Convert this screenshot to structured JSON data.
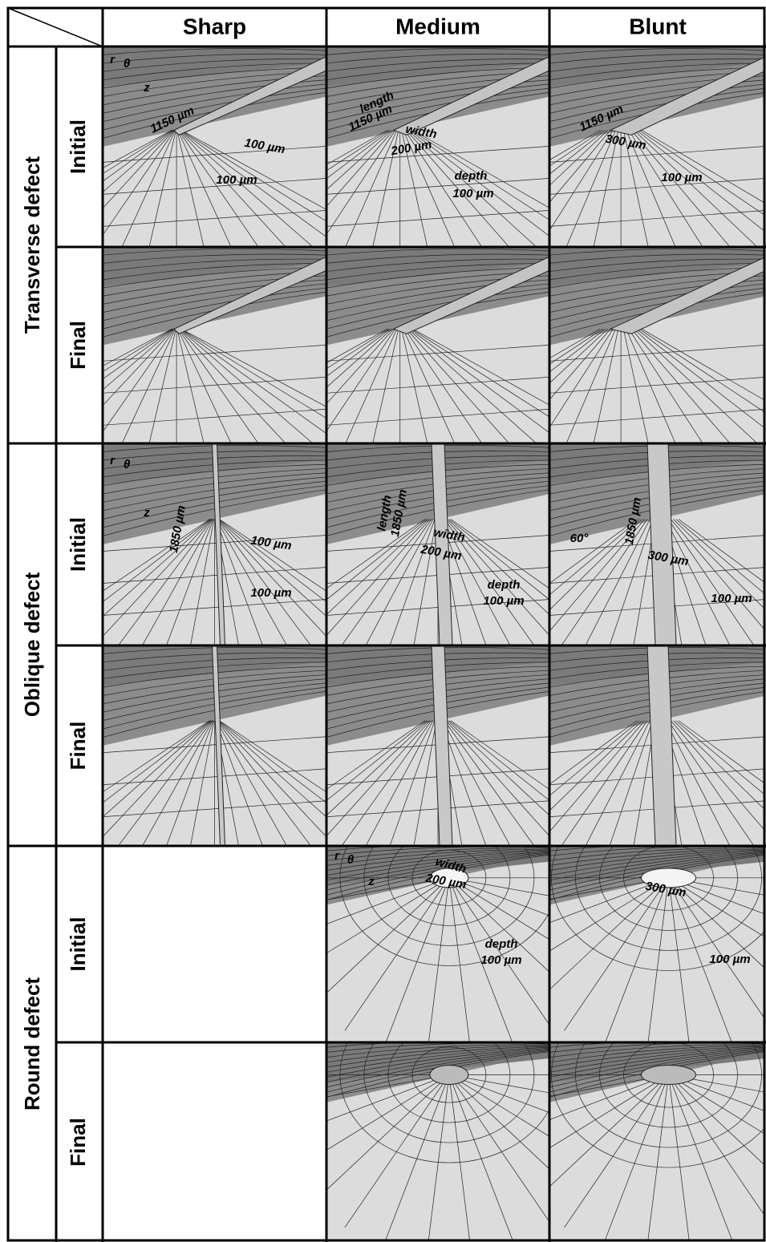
{
  "header": {
    "columns": [
      "Sharp",
      "Medium",
      "Blunt"
    ]
  },
  "row_groups": [
    {
      "label": "Transverse defect",
      "rows": [
        {
          "label": "Initial",
          "cells": [
            [
              "r",
              "θ",
              "z",
              "1150 µm",
              "100 µm",
              "100 µm"
            ],
            [
              "length",
              "1150 µm",
              "width",
              "200 µm",
              "depth",
              "100 µm"
            ],
            [
              "1150 µm",
              "300 µm",
              "100 µm"
            ]
          ]
        },
        {
          "label": "Final"
        }
      ]
    },
    {
      "label": "Oblique defect",
      "rows": [
        {
          "label": "Initial",
          "cells": [
            [
              "r",
              "θ",
              "z",
              "1850 µm",
              "100 µm",
              "100 µm"
            ],
            [
              "length",
              "1850 µm",
              "width",
              "200 µm",
              "depth",
              "100 µm"
            ],
            [
              "60°",
              "1850 µm",
              "300 µm",
              "100 µm"
            ]
          ]
        },
        {
          "label": "Final"
        }
      ]
    },
    {
      "label": "Round defect",
      "rows": [
        {
          "label": "Initial",
          "cells": [
            [],
            [
              "r",
              "θ",
              "z",
              "width",
              "200 µm",
              "depth",
              "100 µm"
            ],
            [
              "300 µm",
              "100 µm"
            ]
          ]
        },
        {
          "label": "Final"
        }
      ]
    }
  ]
}
